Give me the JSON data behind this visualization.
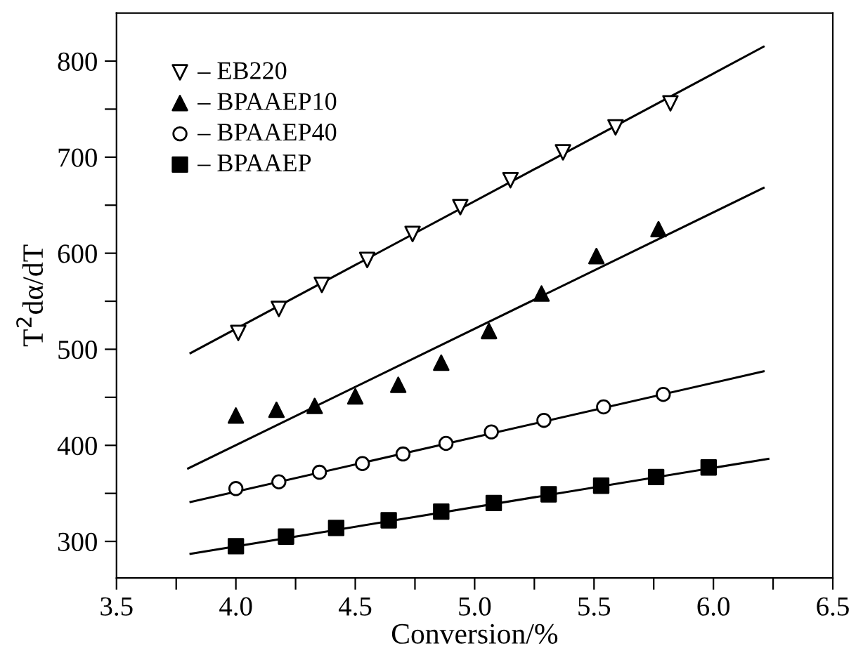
{
  "chart_data": {
    "type": "scatter",
    "xlabel": "Conversion/%",
    "ylabel": "T$^{2}$dα/dT",
    "xlim": [
      3.5,
      6.5
    ],
    "ylim": [
      262,
      850
    ],
    "xticks": [
      {
        "value": 3.5,
        "label": "3.5"
      },
      {
        "value": 3.75,
        "label": null
      },
      {
        "value": 4.0,
        "label": "4.0"
      },
      {
        "value": 4.25,
        "label": null
      },
      {
        "value": 4.5,
        "label": "4.5"
      },
      {
        "value": 4.75,
        "label": null
      },
      {
        "value": 5.0,
        "label": "5.0"
      },
      {
        "value": 5.25,
        "label": null
      },
      {
        "value": 5.5,
        "label": "5.5"
      },
      {
        "value": 5.75,
        "label": null
      },
      {
        "value": 6.0,
        "label": "6.0"
      },
      {
        "value": 6.25,
        "label": null
      },
      {
        "value": 6.5,
        "label": "6.5"
      }
    ],
    "yticks": [
      300,
      {
        "value": 350,
        "label": null
      },
      400,
      {
        "value": 450,
        "label": null
      },
      500,
      {
        "value": 550,
        "label": null
      },
      600,
      {
        "value": 650,
        "label": null
      },
      700,
      {
        "value": 750,
        "label": null
      },
      800
    ],
    "grid": false,
    "legend": "top left",
    "series": [
      {
        "name": "– EB220",
        "marker": "triangle_down_open",
        "color": "#000000",
        "x": [
          4.01,
          4.18,
          4.36,
          4.55,
          4.74,
          4.94,
          5.15,
          5.37,
          5.59,
          5.82
        ],
        "values": [
          517,
          542,
          567,
          593,
          620,
          648,
          676,
          705,
          731,
          756
        ]
      },
      {
        "name": "– BPAAEP10",
        "marker": "triangle",
        "color": "#000000",
        "x": [
          4.0,
          4.17,
          4.33,
          4.5,
          4.68,
          4.86,
          5.06,
          5.28,
          5.51,
          5.77
        ],
        "values": [
          431,
          437,
          441,
          451,
          463,
          486,
          519,
          558,
          597,
          625
        ]
      },
      {
        "name": "– BPAAEP40",
        "marker": "circle_open",
        "color": "#000000",
        "x": [
          4.0,
          4.18,
          4.35,
          4.53,
          4.7,
          4.88,
          5.07,
          5.29,
          5.54,
          5.79
        ],
        "values": [
          355,
          362,
          372,
          381,
          391,
          402,
          414,
          426,
          440,
          453
        ]
      },
      {
        "name": "– BPAAEP",
        "marker": "square",
        "color": "#000000",
        "x": [
          4.0,
          4.21,
          4.42,
          4.64,
          4.86,
          5.08,
          5.31,
          5.53,
          5.76,
          5.98
        ],
        "values": [
          295,
          305,
          314,
          322,
          331,
          340,
          349,
          358,
          367,
          377
        ]
      },
      {
        "type": "line",
        "marker": "none",
        "color": "#000000",
        "x": [
          3.81,
          6.21
        ],
        "values": [
          496,
          815
        ]
      },
      {
        "type": "line",
        "marker": "none",
        "color": "#000000",
        "x": [
          3.8,
          6.21
        ],
        "values": [
          376,
          668
        ]
      },
      {
        "type": "line",
        "marker": "none",
        "color": "#000000",
        "x": [
          3.81,
          6.21
        ],
        "values": [
          341,
          477
        ]
      },
      {
        "type": "line",
        "marker": "none",
        "color": "#000000",
        "x": [
          3.81,
          6.23
        ],
        "values": [
          287,
          386
        ]
      }
    ]
  }
}
